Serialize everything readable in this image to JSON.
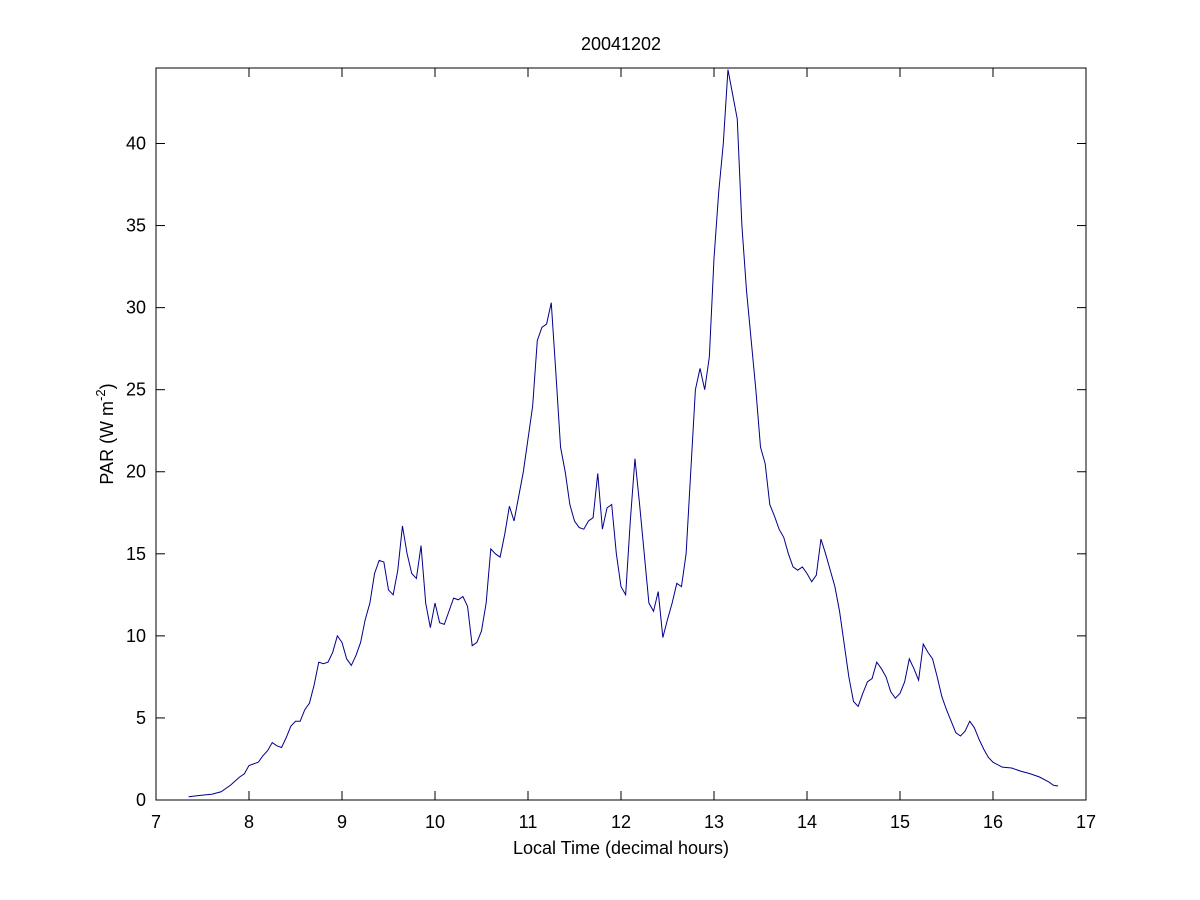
{
  "chart_data": {
    "type": "line",
    "title": "20041202",
    "xlabel": "Local Time (decimal hours)",
    "ylabel": [
      "PAR (W m",
      "-2",
      ")"
    ],
    "xlim": [
      7,
      17
    ],
    "xticks": [
      7,
      8,
      9,
      10,
      11,
      12,
      13,
      14,
      15,
      16,
      17
    ],
    "ylim": [
      0,
      44.6
    ],
    "yticks": [
      0,
      5,
      10,
      15,
      20,
      25,
      30,
      35,
      40
    ],
    "grid": false,
    "x": [
      7.35,
      7.5,
      7.6,
      7.7,
      7.8,
      7.9,
      7.95,
      8.0,
      8.1,
      8.15,
      8.2,
      8.25,
      8.3,
      8.35,
      8.4,
      8.45,
      8.5,
      8.55,
      8.6,
      8.65,
      8.7,
      8.75,
      8.8,
      8.85,
      8.9,
      8.95,
      9.0,
      9.05,
      9.1,
      9.15,
      9.2,
      9.25,
      9.3,
      9.35,
      9.4,
      9.45,
      9.5,
      9.55,
      9.6,
      9.65,
      9.7,
      9.75,
      9.8,
      9.85,
      9.9,
      9.95,
      10.0,
      10.05,
      10.1,
      10.15,
      10.2,
      10.25,
      10.3,
      10.35,
      10.4,
      10.45,
      10.5,
      10.55,
      10.6,
      10.65,
      10.7,
      10.75,
      10.8,
      10.85,
      10.9,
      10.95,
      11.0,
      11.05,
      11.1,
      11.15,
      11.2,
      11.25,
      11.3,
      11.35,
      11.4,
      11.45,
      11.5,
      11.55,
      11.6,
      11.65,
      11.7,
      11.75,
      11.8,
      11.85,
      11.9,
      11.95,
      12.0,
      12.05,
      12.1,
      12.15,
      12.2,
      12.25,
      12.3,
      12.35,
      12.4,
      12.45,
      12.5,
      12.55,
      12.6,
      12.65,
      12.7,
      12.75,
      12.8,
      12.85,
      12.9,
      12.95,
      13.0,
      13.05,
      13.1,
      13.15,
      13.2,
      13.25,
      13.3,
      13.35,
      13.4,
      13.45,
      13.5,
      13.55,
      13.6,
      13.65,
      13.7,
      13.75,
      13.8,
      13.85,
      13.9,
      13.95,
      14.0,
      14.05,
      14.1,
      14.15,
      14.2,
      14.25,
      14.3,
      14.35,
      14.4,
      14.45,
      14.5,
      14.55,
      14.6,
      14.65,
      14.7,
      14.75,
      14.8,
      14.85,
      14.9,
      14.95,
      15.0,
      15.05,
      15.1,
      15.15,
      15.2,
      15.25,
      15.3,
      15.35,
      15.4,
      15.45,
      15.5,
      15.55,
      15.6,
      15.65,
      15.7,
      15.75,
      15.8,
      15.85,
      15.9,
      15.95,
      16.0,
      16.1,
      16.2,
      16.3,
      16.4,
      16.5,
      16.6,
      16.65,
      16.7
    ],
    "series": [
      {
        "name": "PAR",
        "color": "#00008b",
        "values": [
          0.2,
          0.3,
          0.35,
          0.5,
          0.9,
          1.4,
          1.6,
          2.1,
          2.3,
          2.7,
          3.0,
          3.5,
          3.3,
          3.2,
          3.8,
          4.5,
          4.8,
          4.8,
          5.5,
          5.9,
          7.0,
          8.4,
          8.3,
          8.4,
          9.0,
          10.0,
          9.6,
          8.6,
          8.2,
          8.8,
          9.6,
          11.0,
          12.0,
          13.8,
          14.6,
          14.5,
          12.8,
          12.5,
          14.0,
          16.7,
          15.0,
          13.8,
          13.5,
          15.5,
          12.0,
          10.5,
          12.0,
          10.8,
          10.7,
          11.5,
          12.3,
          12.2,
          12.4,
          11.8,
          9.4,
          9.6,
          10.3,
          12.0,
          15.3,
          15.0,
          14.8,
          16.2,
          17.9,
          17.0,
          18.5,
          20.0,
          22.0,
          24.0,
          28.0,
          28.8,
          29.0,
          30.3,
          26.0,
          21.5,
          20.0,
          18.0,
          17.0,
          16.6,
          16.5,
          17.0,
          17.2,
          19.9,
          16.5,
          17.8,
          18.0,
          15.0,
          13.0,
          12.5,
          17.0,
          20.8,
          18.0,
          15.0,
          12.0,
          11.5,
          12.7,
          9.9,
          11.0,
          12.0,
          13.2,
          13.0,
          15.0,
          20.0,
          25.0,
          26.3,
          25.0,
          27.0,
          33.0,
          37.0,
          40.0,
          44.5,
          43.0,
          41.5,
          35.0,
          31.0,
          28.0,
          25.0,
          21.5,
          20.5,
          18.0,
          17.3,
          16.5,
          16.0,
          15.0,
          14.2,
          14.0,
          14.2,
          13.8,
          13.3,
          13.7,
          15.9,
          15.0,
          14.0,
          13.0,
          11.5,
          9.5,
          7.5,
          6.0,
          5.7,
          6.5,
          7.2,
          7.4,
          8.4,
          8.0,
          7.5,
          6.6,
          6.2,
          6.5,
          7.2,
          8.6,
          8.0,
          7.3,
          9.5,
          9.0,
          8.6,
          7.5,
          6.3,
          5.5,
          4.8,
          4.1,
          3.9,
          4.2,
          4.8,
          4.4,
          3.7,
          3.1,
          2.6,
          2.3,
          2.0,
          1.95,
          1.75,
          1.6,
          1.4,
          1.1,
          0.9,
          0.85
        ]
      }
    ]
  }
}
